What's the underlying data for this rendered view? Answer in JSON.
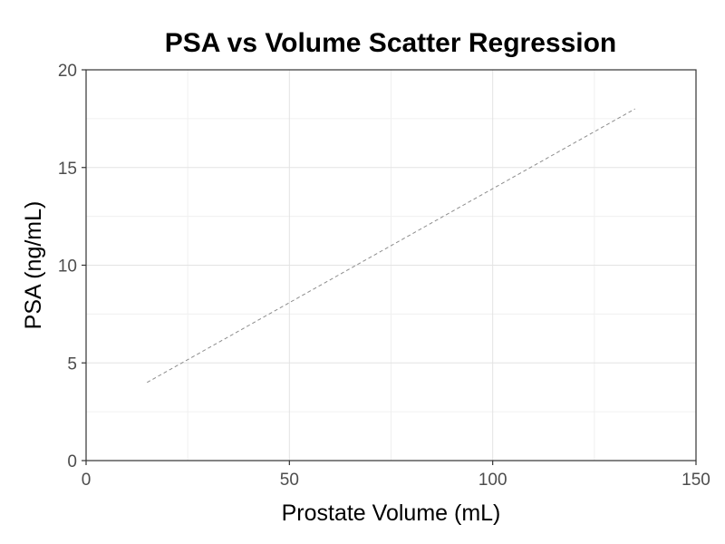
{
  "chart_data": {
    "type": "line",
    "title": "PSA vs Volume Scatter Regression",
    "xlabel": "Prostate Volume (mL)",
    "ylabel": "PSA (ng/mL)",
    "xlim": [
      0,
      150
    ],
    "ylim": [
      0,
      20
    ],
    "x_ticks": [
      0,
      50,
      100,
      150
    ],
    "y_ticks": [
      0,
      5,
      10,
      15,
      20
    ],
    "grid": true,
    "series": [
      {
        "style": "dashed",
        "color": "#8c8c8c",
        "x": [
          15,
          135
        ],
        "y": [
          4,
          18
        ]
      }
    ]
  }
}
